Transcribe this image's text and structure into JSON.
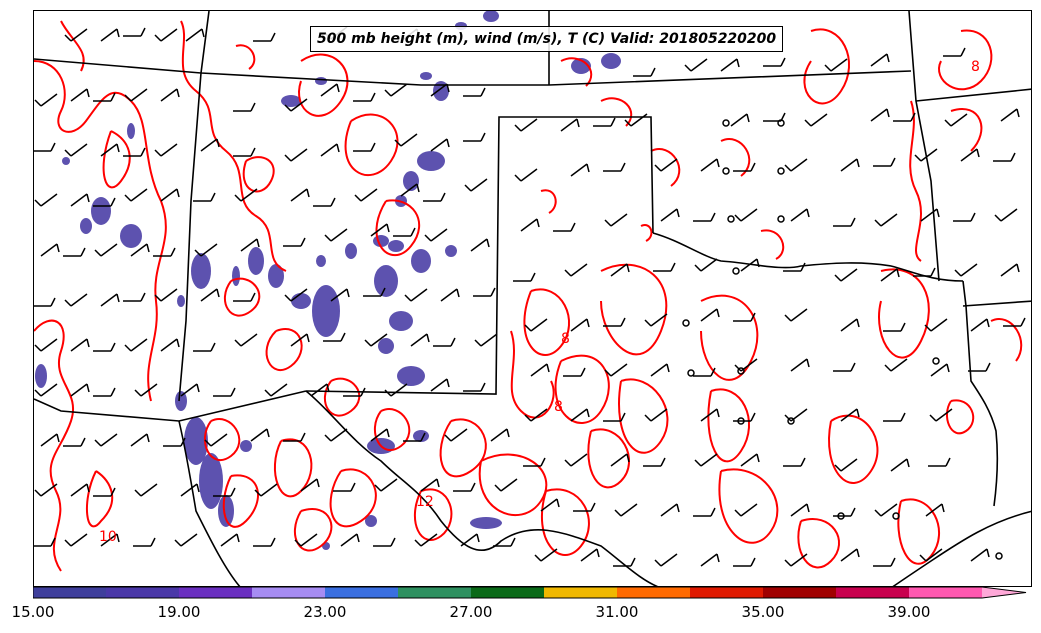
{
  "title": "500 mb height (m), wind (m/s), T (C) Valid: 201805220200",
  "contour_labels": [
    "8",
    "8",
    "8",
    "12",
    "10"
  ],
  "colorbar": {
    "colors": [
      "#3f3f9c",
      "#4a38a8",
      "#6a2fc0",
      "#a68cf2",
      "#3a6fe0",
      "#2e9060",
      "#0a6a18",
      "#f0b800",
      "#ff6a00",
      "#e01a00",
      "#a00000",
      "#c8004e",
      "#ff58b0",
      "#ffa8d8"
    ],
    "tick_labels": [
      "15.00",
      "19.00",
      "23.00",
      "27.00",
      "31.00",
      "35.00",
      "39.00"
    ]
  },
  "colors": {
    "temperature_contour": "#ff0000",
    "boundaries": "#000000",
    "shading": "#4b3fa6"
  }
}
